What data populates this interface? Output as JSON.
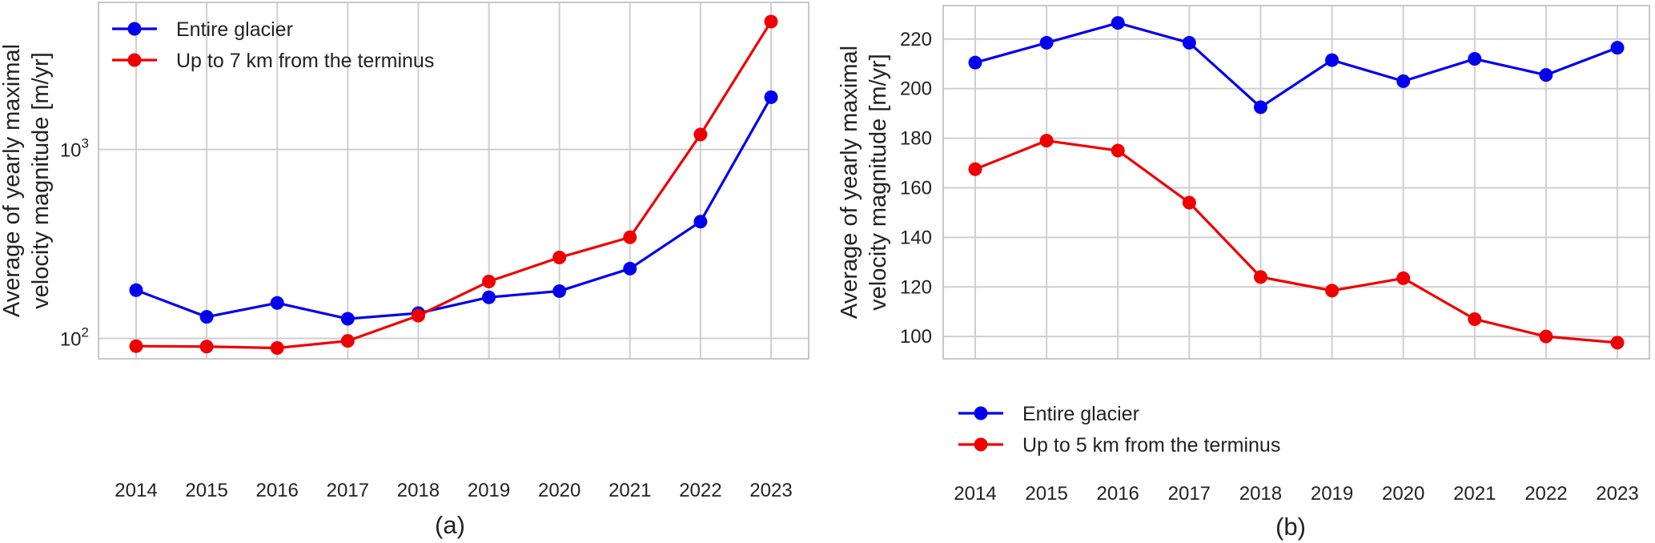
{
  "chart_data": [
    {
      "type": "line",
      "panel_label": "(a)",
      "yscale": "log",
      "x": [
        2014,
        2015,
        2016,
        2017,
        2018,
        2019,
        2020,
        2021,
        2022,
        2023
      ],
      "ylim": [
        78,
        6000
      ],
      "yticks": [
        {
          "value": 100,
          "base": "10",
          "exp": "2"
        },
        {
          "value": 1000,
          "base": "10",
          "exp": "3"
        }
      ],
      "ylabel_lines": [
        "Average of yearly maximal",
        "velocity magnitude [m/yr]"
      ],
      "legend_position": "upper-left",
      "grid": true,
      "series": [
        {
          "name": "Entire glacier",
          "color": "#0000ee",
          "values": [
            180,
            130,
            154,
            127,
            136,
            165,
            178,
            234,
            415,
            1890
          ]
        },
        {
          "name": "Up to 7 km from the terminus",
          "color": "#ee0000",
          "values": [
            91,
            90.5,
            89,
            97,
            132,
            200,
            268,
            343,
            1200,
            4750
          ]
        }
      ]
    },
    {
      "type": "line",
      "panel_label": "(b)",
      "yscale": "linear",
      "x": [
        2014,
        2015,
        2016,
        2017,
        2018,
        2019,
        2020,
        2021,
        2022,
        2023
      ],
      "ylim": [
        91,
        233.5
      ],
      "yticks": [
        100,
        120,
        140,
        160,
        180,
        200,
        220
      ],
      "ylabel_lines": [
        "Average of yearly maximal",
        "velocity magnitude [m/yr]"
      ],
      "legend_position": "lower-left",
      "grid": true,
      "series": [
        {
          "name": "Entire glacier",
          "color": "#0000ee",
          "values": [
            210.5,
            218.5,
            226.5,
            218.5,
            192.5,
            211.5,
            203,
            212,
            205.5,
            216.5
          ]
        },
        {
          "name": "Up to 5 km from the terminus",
          "color": "#ee0000",
          "values": [
            167.5,
            179,
            175,
            154,
            124,
            118.5,
            123.5,
            107,
            100,
            97.5
          ]
        }
      ]
    }
  ]
}
